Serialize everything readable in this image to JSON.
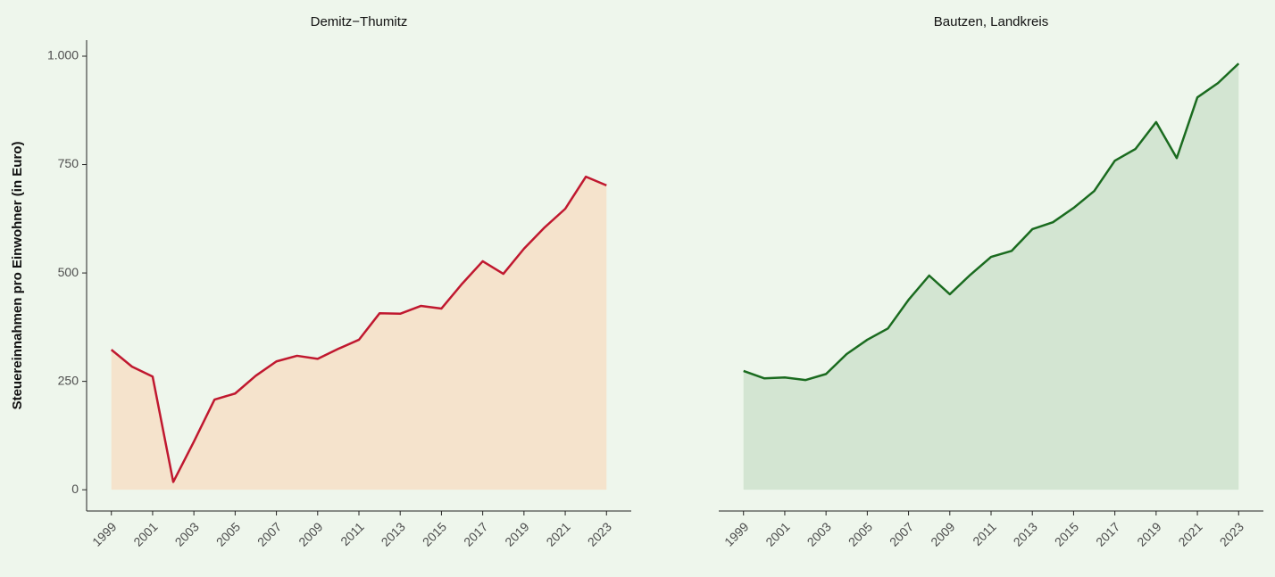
{
  "chart_data": [
    {
      "type": "area",
      "title": "Demitz−Thumitz",
      "ylabel": "Steuereinnahmen pro Einwohner (in Euro)",
      "x": [
        1999,
        2000,
        2001,
        2002,
        2003,
        2004,
        2005,
        2006,
        2007,
        2008,
        2009,
        2010,
        2011,
        2012,
        2013,
        2014,
        2015,
        2016,
        2017,
        2018,
        2019,
        2020,
        2021,
        2022,
        2023
      ],
      "values": [
        323,
        284,
        261,
        18,
        111,
        208,
        222,
        263,
        296,
        309,
        302,
        325,
        346,
        407,
        406,
        424,
        418,
        475,
        527,
        498,
        556,
        605,
        648,
        722,
        702
      ],
      "color": "#c0182f",
      "fill": "#f5e3cc",
      "xlim": [
        1997.8,
        2024.2
      ],
      "xticks": [
        1999,
        2001,
        2003,
        2005,
        2007,
        2009,
        2011,
        2013,
        2015,
        2017,
        2019,
        2021,
        2023
      ],
      "ylim": [
        -49,
        1037
      ],
      "yticks": [
        0,
        250,
        500,
        750,
        {
          "value": 1000,
          "label": "1.000"
        }
      ]
    },
    {
      "type": "area",
      "title": "Bautzen, Landkreis",
      "x": [
        1999,
        2000,
        2001,
        2002,
        2003,
        2004,
        2005,
        2006,
        2007,
        2008,
        2009,
        2010,
        2011,
        2012,
        2013,
        2014,
        2015,
        2016,
        2017,
        2018,
        2019,
        2020,
        2021,
        2022,
        2023
      ],
      "values": [
        274,
        257,
        259,
        253,
        267,
        313,
        346,
        372,
        438,
        494,
        451,
        496,
        537,
        551,
        601,
        617,
        650,
        689,
        759,
        786,
        848,
        765,
        905,
        938,
        983
      ],
      "color": "#1a6b1f",
      "fill": "#d3e5d2",
      "xlim": [
        1997.8,
        2024.2
      ],
      "xticks": [
        1999,
        2001,
        2003,
        2005,
        2007,
        2009,
        2011,
        2013,
        2015,
        2017,
        2019,
        2021,
        2023
      ],
      "ylim": [
        -49,
        1037
      ]
    }
  ]
}
